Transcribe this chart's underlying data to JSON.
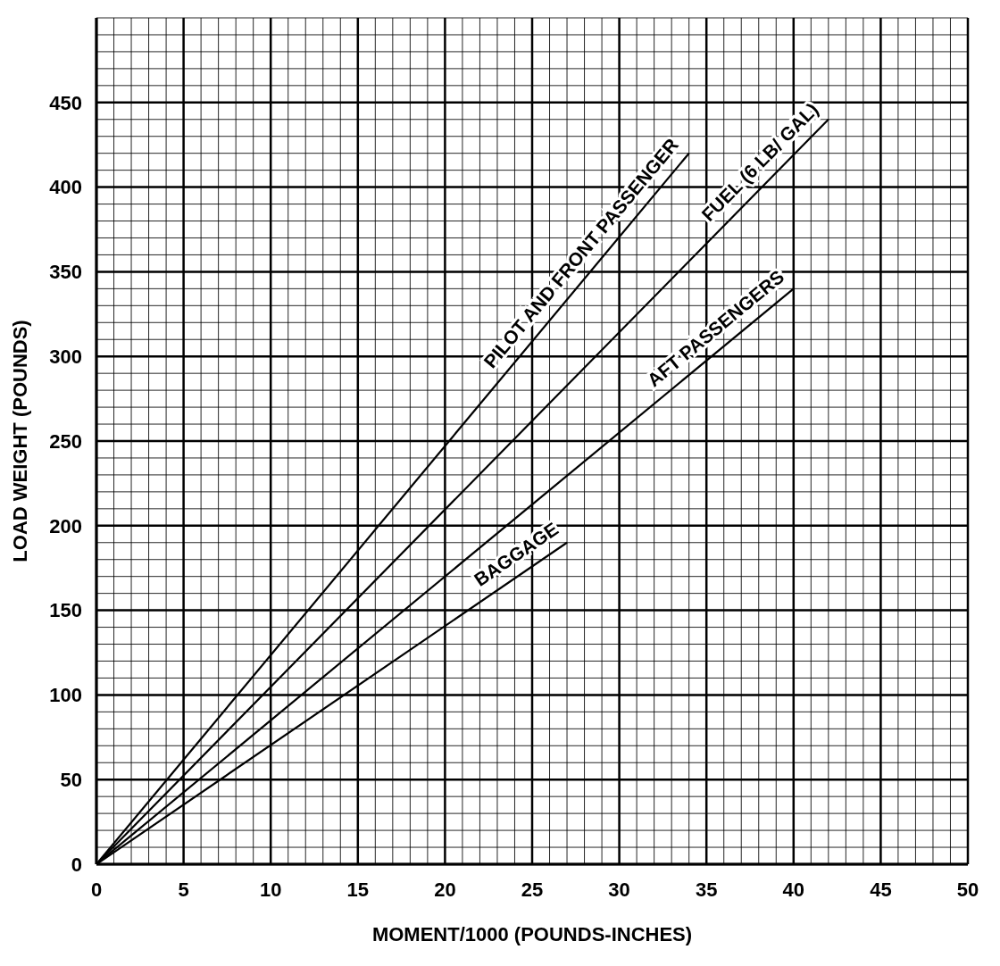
{
  "chart_data": {
    "type": "line",
    "xlabel": "MOMENT/1000 (POUNDS-INCHES)",
    "ylabel": "LOAD WEIGHT (POUNDS)",
    "series": [
      {
        "name": "PILOT AND FRONT PASSENGER",
        "color": "#000000",
        "x": [
          0,
          34
        ],
        "values": [
          0,
          420
        ]
      },
      {
        "name": "FUEL (6 LB/ GAL)",
        "color": "#000000",
        "x": [
          0,
          42
        ],
        "values": [
          0,
          440
        ]
      },
      {
        "name": "AFT PASSENGERS",
        "color": "#000000",
        "x": [
          0,
          40
        ],
        "values": [
          0,
          340
        ]
      },
      {
        "name": "BAGGAGE",
        "color": "#000000",
        "x": [
          0,
          27
        ],
        "values": [
          0,
          190
        ]
      }
    ],
    "xlim": [
      0,
      50
    ],
    "xticks": [
      0,
      5,
      10,
      15,
      20,
      25,
      30,
      35,
      40,
      45,
      50
    ],
    "ylim": [
      0,
      500
    ],
    "yticks": [
      0,
      50,
      100,
      150,
      200,
      250,
      300,
      350,
      400,
      450
    ],
    "grid": true
  }
}
